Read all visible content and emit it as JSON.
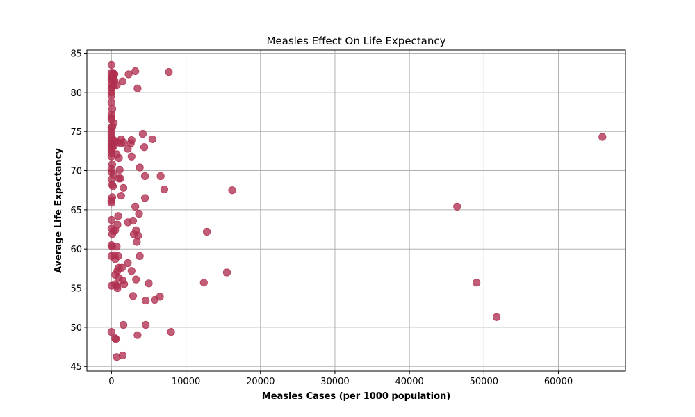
{
  "chart_data": {
    "type": "scatter",
    "title": "Measles Effect On Life Expectancy",
    "xlabel": "Measles Cases (per 1000 population)",
    "ylabel": "Average Life Expectancy",
    "xlim": [
      -3300,
      69000
    ],
    "ylim": [
      44.4,
      85.4
    ],
    "xticks": [
      0,
      10000,
      20000,
      30000,
      40000,
      50000,
      60000
    ],
    "yticks": [
      45,
      50,
      55,
      60,
      65,
      70,
      75,
      80,
      85
    ],
    "grid": true,
    "marker_color": "#b03050",
    "points": [
      [
        0,
        83.5
      ],
      [
        0,
        82.5
      ],
      [
        0,
        82.0
      ],
      [
        0,
        81.6
      ],
      [
        0,
        81.0
      ],
      [
        0,
        80.5
      ],
      [
        0,
        80.0
      ],
      [
        0,
        79.6
      ],
      [
        0,
        78.7
      ],
      [
        0,
        77.2
      ],
      [
        0,
        76.8
      ],
      [
        0,
        76.5
      ],
      [
        0,
        75.5
      ],
      [
        0,
        75.0
      ],
      [
        0,
        74.6
      ],
      [
        0,
        74.2
      ],
      [
        0,
        73.8
      ],
      [
        0,
        73.4
      ],
      [
        0,
        73.0
      ],
      [
        0,
        72.6
      ],
      [
        0,
        72.2
      ],
      [
        0,
        71.8
      ],
      [
        0,
        70.2
      ],
      [
        0,
        69.8
      ],
      [
        0,
        68.9
      ],
      [
        0,
        66.2
      ],
      [
        0,
        65.9
      ],
      [
        0,
        63.7
      ],
      [
        0,
        62.6
      ],
      [
        0,
        60.5
      ],
      [
        0,
        59.1
      ],
      [
        0,
        55.3
      ],
      [
        0,
        49.4
      ],
      [
        100,
        81.8
      ],
      [
        100,
        80.7
      ],
      [
        100,
        77.9
      ],
      [
        100,
        75.6
      ],
      [
        100,
        73.5
      ],
      [
        100,
        72.9
      ],
      [
        100,
        70.8
      ],
      [
        100,
        68.2
      ],
      [
        100,
        66.6
      ],
      [
        100,
        61.9
      ],
      [
        100,
        60.3
      ],
      [
        200,
        82.5
      ],
      [
        200,
        68.0
      ],
      [
        300,
        82.3
      ],
      [
        300,
        81.7
      ],
      [
        300,
        80.9
      ],
      [
        300,
        76.1
      ],
      [
        300,
        73.9
      ],
      [
        300,
        73.1
      ],
      [
        300,
        69.5
      ],
      [
        300,
        62.3
      ],
      [
        400,
        82.3
      ],
      [
        400,
        81.5
      ],
      [
        400,
        73.6
      ],
      [
        400,
        59.2
      ],
      [
        500,
        62.4
      ],
      [
        500,
        58.7
      ],
      [
        500,
        56.7
      ],
      [
        500,
        55.5
      ],
      [
        500,
        48.6
      ],
      [
        600,
        48.5
      ],
      [
        700,
        80.9
      ],
      [
        700,
        72.1
      ],
      [
        700,
        60.3
      ],
      [
        700,
        55.3
      ],
      [
        700,
        46.2
      ],
      [
        800,
        63.1
      ],
      [
        800,
        57.2
      ],
      [
        800,
        55.0
      ],
      [
        900,
        73.6
      ],
      [
        900,
        64.2
      ],
      [
        900,
        59.1
      ],
      [
        1000,
        71.6
      ],
      [
        1000,
        69.0
      ],
      [
        1000,
        57.6
      ],
      [
        1000,
        56.3
      ],
      [
        1100,
        70.1
      ],
      [
        1200,
        69.0
      ],
      [
        1300,
        74.0
      ],
      [
        1300,
        66.8
      ],
      [
        1300,
        73.5
      ],
      [
        1400,
        57.6
      ],
      [
        1500,
        81.4
      ],
      [
        1500,
        56.0
      ],
      [
        1500,
        46.4
      ],
      [
        1600,
        73.6
      ],
      [
        1600,
        67.8
      ],
      [
        1600,
        50.3
      ],
      [
        1700,
        55.5
      ],
      [
        2200,
        72.8
      ],
      [
        2200,
        63.4
      ],
      [
        2200,
        58.2
      ],
      [
        2300,
        82.3
      ],
      [
        2600,
        73.5
      ],
      [
        2700,
        73.9
      ],
      [
        2700,
        71.8
      ],
      [
        2700,
        57.2
      ],
      [
        2900,
        63.6
      ],
      [
        2900,
        54.0
      ],
      [
        3000,
        61.9
      ],
      [
        3200,
        82.7
      ],
      [
        3200,
        65.4
      ],
      [
        3300,
        62.4
      ],
      [
        3300,
        56.1
      ],
      [
        3400,
        60.9
      ],
      [
        3500,
        80.5
      ],
      [
        3500,
        49.0
      ],
      [
        3600,
        61.7
      ],
      [
        3700,
        64.5
      ],
      [
        3800,
        70.4
      ],
      [
        3800,
        59.1
      ],
      [
        4200,
        74.7
      ],
      [
        4400,
        73.0
      ],
      [
        4500,
        69.3
      ],
      [
        4500,
        66.5
      ],
      [
        4600,
        53.4
      ],
      [
        4600,
        50.3
      ],
      [
        5000,
        55.6
      ],
      [
        5500,
        74.0
      ],
      [
        5800,
        53.5
      ],
      [
        6500,
        53.9
      ],
      [
        6600,
        69.3
      ],
      [
        7100,
        67.6
      ],
      [
        7700,
        82.6
      ],
      [
        8000,
        49.4
      ],
      [
        12400,
        55.7
      ],
      [
        12800,
        62.2
      ],
      [
        15500,
        57.0
      ],
      [
        16200,
        67.5
      ],
      [
        46400,
        65.4
      ],
      [
        49000,
        55.7
      ],
      [
        51700,
        51.3
      ],
      [
        65900,
        74.3
      ]
    ]
  }
}
